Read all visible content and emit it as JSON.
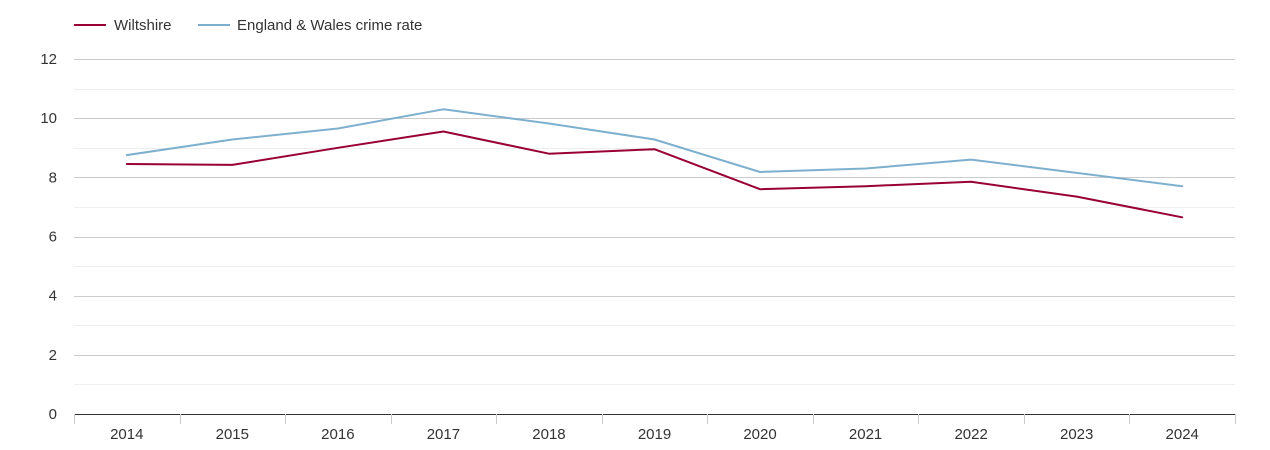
{
  "chart_data": {
    "type": "line",
    "title": "",
    "xlabel": "",
    "ylabel": "",
    "x": [
      "2014",
      "2015",
      "2016",
      "2017",
      "2018",
      "2019",
      "2020",
      "2021",
      "2022",
      "2023",
      "2024"
    ],
    "ylim": [
      0,
      12
    ],
    "yticks": [
      "0",
      "2",
      "4",
      "6",
      "8",
      "10",
      "12"
    ],
    "grid": true,
    "legend_position": "top-left",
    "series": [
      {
        "name": "Wiltshire",
        "color": "#990033",
        "values": [
          8.45,
          8.42,
          9.0,
          9.55,
          8.8,
          8.95,
          7.6,
          7.7,
          7.85,
          7.35,
          6.65
        ]
      },
      {
        "name": "England & Wales crime rate",
        "color": "#7db0cf",
        "values": [
          8.75,
          9.28,
          9.65,
          10.3,
          9.82,
          9.28,
          8.18,
          8.3,
          8.6,
          8.15,
          7.7
        ]
      }
    ]
  }
}
